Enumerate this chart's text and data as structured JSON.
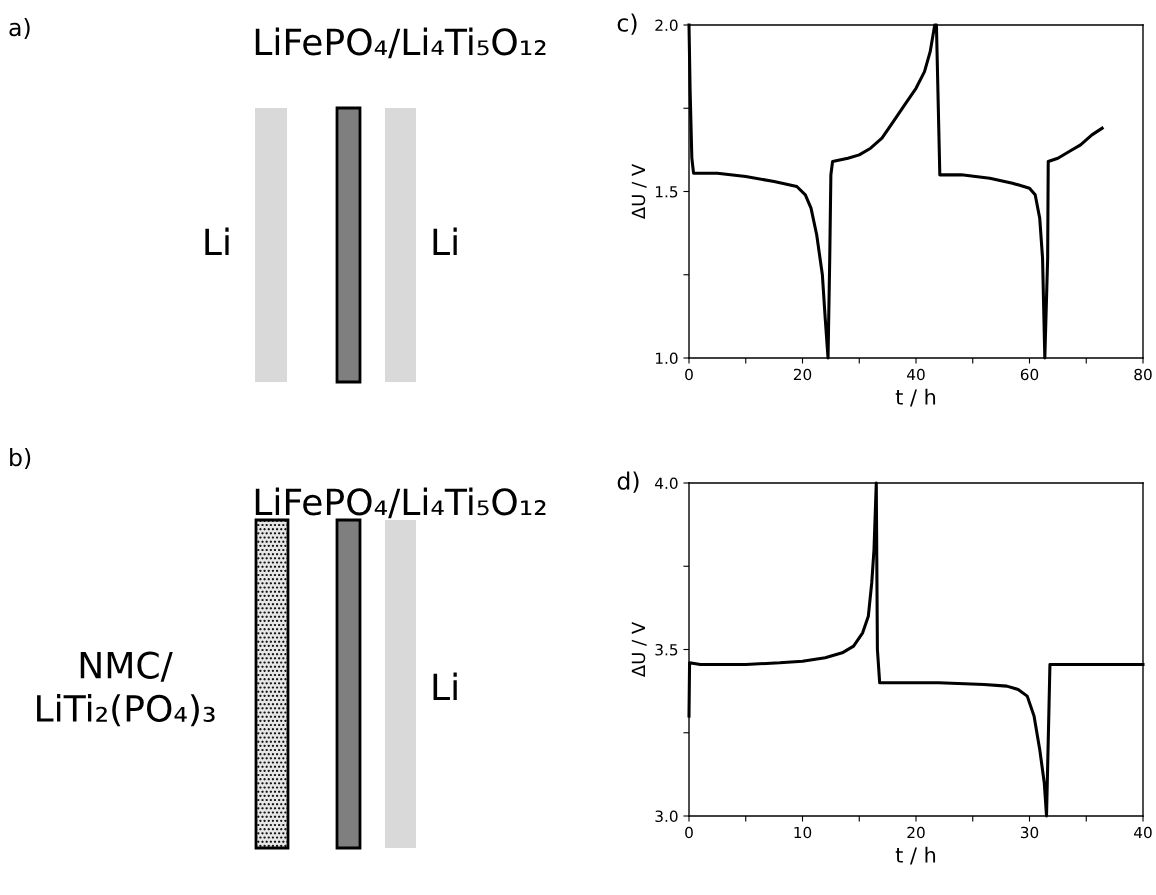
{
  "chart_data": [
    {
      "type": "other",
      "title": "LiFePO₄/Li₄Ti₅O₁₂",
      "annotations": [
        "a)",
        "Li",
        "Li"
      ]
    },
    {
      "type": "other",
      "title": "LiFePO₄/Li₄Ti₅O₁₂",
      "annotations": [
        "b)",
        "NMC/\nLiTi₂(PO₄)₃",
        "Li"
      ]
    },
    {
      "type": "line",
      "xlabel": "t / h",
      "ylabel": "ΔU / V",
      "annotations": [
        "c)"
      ],
      "marker": "none",
      "line_style": "solid",
      "grid": false,
      "xlim": [
        0,
        80
      ],
      "ylim": [
        1.0,
        2.0
      ],
      "xticks": [
        0,
        {
          "value": 10,
          "label": null
        },
        20,
        {
          "value": 30,
          "label": null
        },
        40,
        {
          "value": 50,
          "label": null
        },
        60,
        {
          "value": 70,
          "label": null
        },
        80
      ],
      "yticks": [
        {
          "value": 1.0,
          "label": "1.0"
        },
        {
          "value": 1.25,
          "label": null
        },
        1.5,
        {
          "value": 1.75,
          "label": null
        },
        {
          "value": 2.0,
          "label": "2.0"
        }
      ],
      "series": [
        {
          "color": "#000000",
          "x": [
            0,
            0.2,
            0.5,
            0.8,
            5,
            10,
            15,
            19,
            20.5,
            21.5,
            22.5,
            23.5,
            24,
            24.5,
            24.8,
            25,
            25.3,
            28,
            30,
            32,
            34,
            36,
            38,
            40,
            41.5,
            42.5,
            43.3,
            43.6,
            44.2,
            48,
            53,
            57,
            60,
            61,
            61.8,
            62.3,
            62.7,
            63.2,
            63.3,
            65,
            67,
            69,
            71,
            72.8
          ],
          "values": [
            2.0,
            1.8,
            1.6,
            1.555,
            1.555,
            1.545,
            1.53,
            1.515,
            1.49,
            1.45,
            1.37,
            1.25,
            1.12,
            1.0,
            1.3,
            1.55,
            1.59,
            1.6,
            1.61,
            1.63,
            1.66,
            1.71,
            1.76,
            1.81,
            1.86,
            1.92,
            2.0,
            2.0,
            1.55,
            1.55,
            1.54,
            1.525,
            1.51,
            1.49,
            1.42,
            1.3,
            1.0,
            1.3,
            1.59,
            1.6,
            1.62,
            1.64,
            1.67,
            1.69
          ]
        }
      ]
    },
    {
      "type": "line",
      "xlabel": "t / h",
      "ylabel": "ΔU / V",
      "annotations": [
        "d)"
      ],
      "marker": "none",
      "line_style": "solid",
      "grid": false,
      "xlim": [
        0,
        40
      ],
      "ylim": [
        3.0,
        4.0
      ],
      "xticks": [
        0,
        {
          "value": 5,
          "label": null
        },
        10,
        {
          "value": 15,
          "label": null
        },
        20,
        {
          "value": 25,
          "label": null
        },
        30,
        {
          "value": 35,
          "label": null
        },
        40
      ],
      "yticks": [
        {
          "value": 3.0,
          "label": "3.0"
        },
        {
          "value": 3.25,
          "label": null
        },
        3.5,
        {
          "value": 3.75,
          "label": null
        },
        {
          "value": 4.0,
          "label": "4.0"
        }
      ],
      "series": [
        {
          "color": "#000000",
          "x": [
            0,
            0.05,
            1,
            5,
            8,
            10,
            12,
            13.5,
            14.5,
            15.3,
            15.8,
            16.1,
            16.3,
            16.5,
            16.6,
            16.8,
            18,
            22,
            26,
            28,
            29,
            29.8,
            30.4,
            30.9,
            31.3,
            31.5,
            31.7,
            31.8,
            34,
            37,
            40
          ],
          "values": [
            3.3,
            3.46,
            3.455,
            3.455,
            3.46,
            3.465,
            3.475,
            3.49,
            3.51,
            3.55,
            3.6,
            3.7,
            3.8,
            4.0,
            3.5,
            3.4,
            3.4,
            3.4,
            3.395,
            3.39,
            3.38,
            3.36,
            3.3,
            3.2,
            3.1,
            3.0,
            3.3,
            3.455,
            3.455,
            3.455,
            3.455
          ]
        }
      ]
    }
  ]
}
